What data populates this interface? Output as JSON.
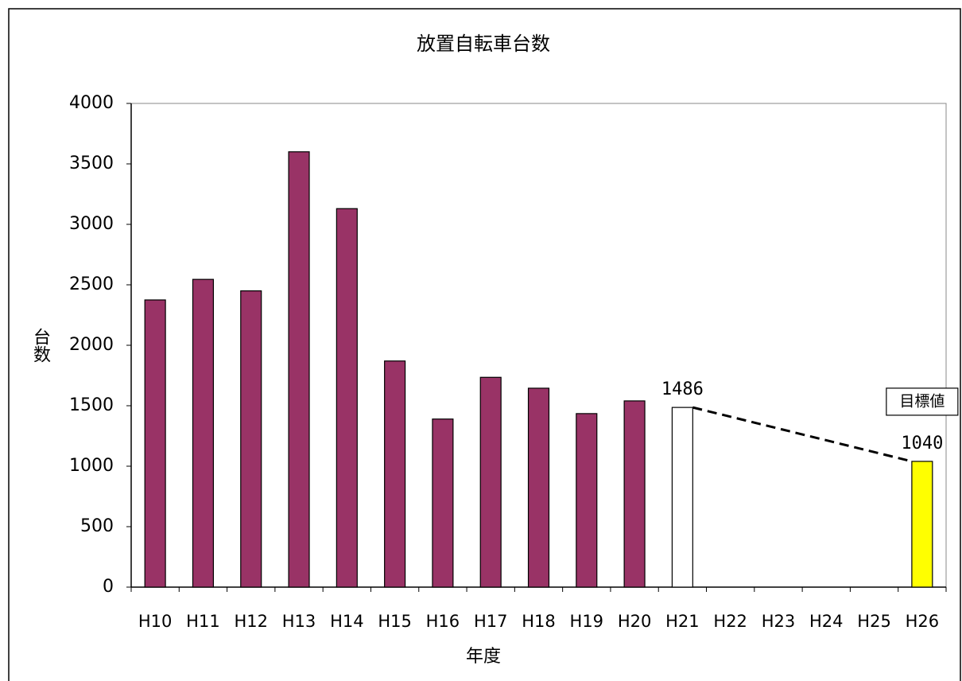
{
  "chart_data": {
    "type": "bar",
    "title": "放置自転車台数",
    "x_label": "年度",
    "y_label": "台数",
    "categories": [
      "H10",
      "H11",
      "H12",
      "H13",
      "H14",
      "H15",
      "H16",
      "H17",
      "H18",
      "H19",
      "H20",
      "H21",
      "H22",
      "H23",
      "H24",
      "H25",
      "H26"
    ],
    "values": [
      2375,
      2545,
      2450,
      3600,
      3130,
      1870,
      1390,
      1735,
      1645,
      1435,
      1540,
      1486,
      null,
      null,
      null,
      null,
      1040
    ],
    "value_labels": [
      null,
      null,
      null,
      null,
      null,
      null,
      null,
      null,
      null,
      null,
      null,
      "1486",
      null,
      null,
      null,
      null,
      "1040"
    ],
    "colors": [
      "#993366",
      "#993366",
      "#993366",
      "#993366",
      "#993366",
      "#993366",
      "#993366",
      "#993366",
      "#993366",
      "#993366",
      "#993366",
      "#ffffff",
      null,
      null,
      null,
      null,
      "#ffff00"
    ],
    "annotation": "目標値",
    "ylim": [
      0,
      4000
    ],
    "yticks": [
      0,
      500,
      1000,
      1500,
      2000,
      2500,
      3000,
      3500,
      4000
    ],
    "grid": false
  }
}
